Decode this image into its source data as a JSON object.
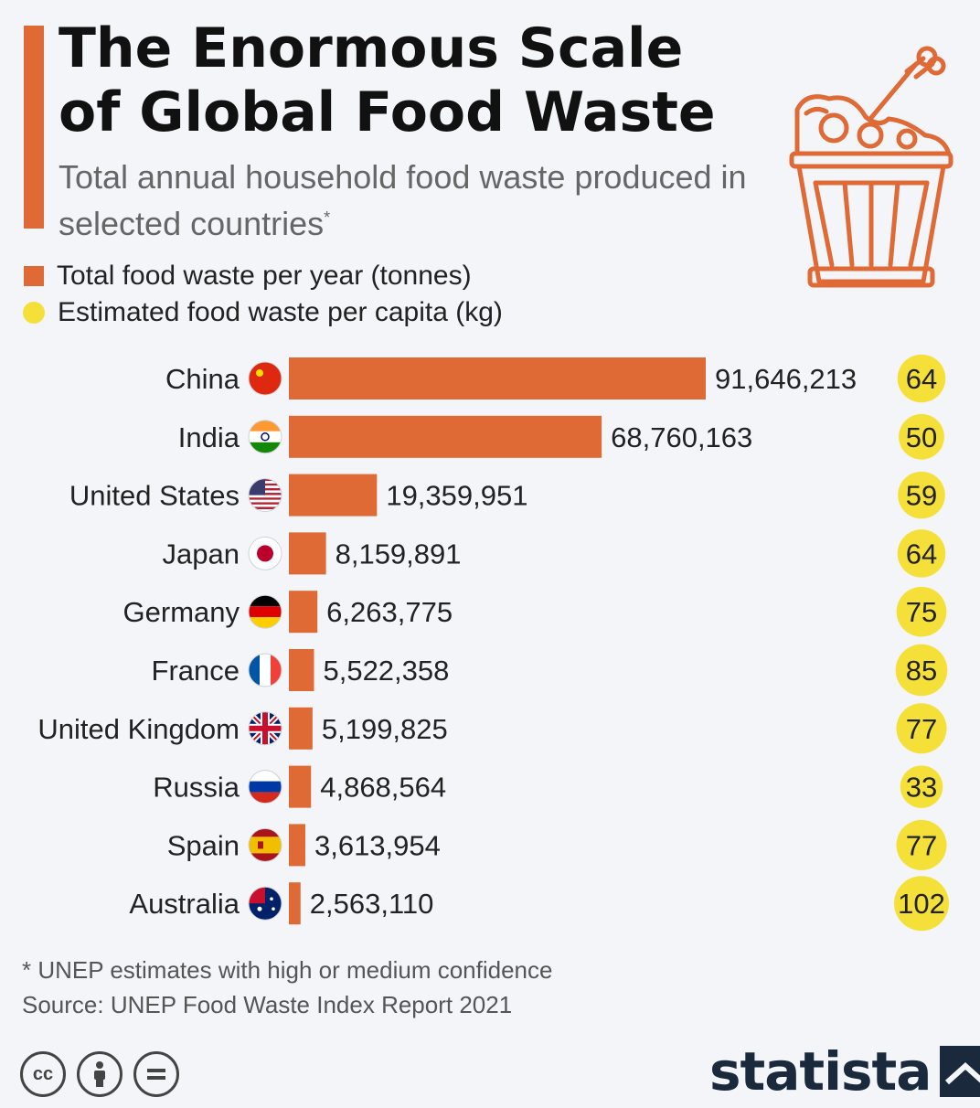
{
  "header": {
    "title": "The Enormous Scale of Global Food Waste",
    "subtitle": "Total annual household food waste produced in selected countries",
    "subtitle_mark": "*"
  },
  "legend": {
    "bar_label": "Total food waste per year (tonnes)",
    "dot_label": "Estimated food waste per capita (kg)"
  },
  "colors": {
    "bar": "#e06a35",
    "dot": "#f5e03a",
    "accent": "#e06a35"
  },
  "icons": [
    "food-waste-bucket-icon",
    "cc-icon",
    "attribution-icon",
    "no-derivatives-icon",
    "statista-logo-icon"
  ],
  "chart_data": {
    "type": "bar",
    "orientation": "horizontal",
    "categories": [
      "China",
      "India",
      "United States",
      "Japan",
      "Germany",
      "France",
      "United Kingdom",
      "Russia",
      "Spain",
      "Australia"
    ],
    "flags": [
      "china-flag-icon",
      "india-flag-icon",
      "united-states-flag-icon",
      "japan-flag-icon",
      "germany-flag-icon",
      "france-flag-icon",
      "united-kingdom-flag-icon",
      "russia-flag-icon",
      "spain-flag-icon",
      "australia-flag-icon"
    ],
    "series": [
      {
        "name": "Total food waste per year (tonnes)",
        "values": [
          91646213,
          68760163,
          19359951,
          8159891,
          6263775,
          5522358,
          5199825,
          4868564,
          3613954,
          2563110
        ],
        "labels": [
          "91,646,213",
          "68,760,163",
          "19,359,951",
          "8,159,891",
          "6,263,775",
          "5,522,358",
          "5,199,825",
          "4,868,564",
          "3,613,954",
          "2,563,110"
        ]
      },
      {
        "name": "Estimated food waste per capita (kg)",
        "values": [
          64,
          50,
          59,
          64,
          75,
          85,
          77,
          33,
          77,
          102
        ]
      }
    ],
    "xlim": [
      0,
      91646213
    ],
    "grid": false,
    "legend": "top-left"
  },
  "footer": {
    "note": "* UNEP estimates with high or medium confidence",
    "source": "Source: UNEP Food Waste Index Report 2021",
    "brand": "statista",
    "cc_label": "cc"
  }
}
